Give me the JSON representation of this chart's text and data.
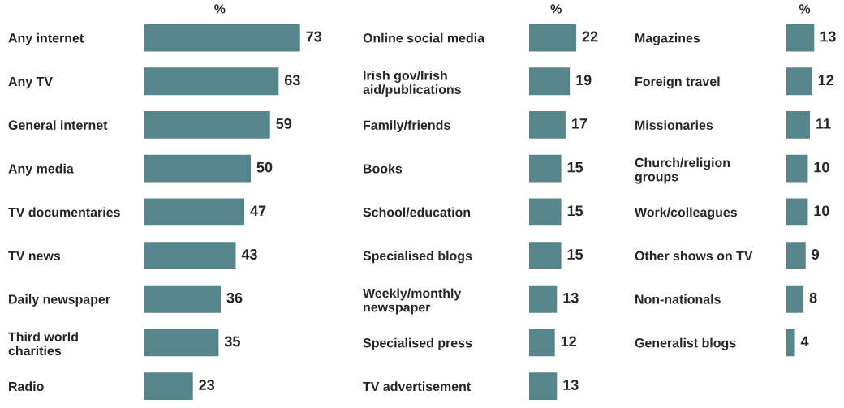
{
  "chart_data": [
    {
      "type": "bar",
      "orientation": "horizontal",
      "title": "%",
      "data_labels": true,
      "color": "#56868c",
      "categories": [
        "Any internet",
        "Any TV",
        "General internet",
        "Any media",
        "TV documentaries",
        "TV news",
        "Daily newspaper",
        "Third world\ncharities",
        "Radio"
      ],
      "values": [
        73,
        63,
        59,
        50,
        47,
        43,
        36,
        35,
        23
      ]
    },
    {
      "type": "bar",
      "orientation": "horizontal",
      "title": "%",
      "data_labels": true,
      "color": "#56868c",
      "categories": [
        "Online social media",
        "Irish gov/Irish\naid/publications",
        "Family/friends",
        "Books",
        "School/education",
        "Specialised blogs",
        "Weekly/monthly\nnewspaper",
        "Specialised press",
        "TV advertisement"
      ],
      "values": [
        22,
        19,
        17,
        15,
        15,
        15,
        13,
        12,
        13
      ]
    },
    {
      "type": "bar",
      "orientation": "horizontal",
      "title": "%",
      "data_labels": true,
      "color": "#56868c",
      "categories": [
        "Magazines",
        "Foreign travel",
        "Missionaries",
        "Church/religion\ngroups",
        "Work/colleagues",
        "Other shows on TV",
        "Non-nationals",
        "Generalist blogs"
      ],
      "values": [
        13,
        12,
        11,
        10,
        10,
        9,
        8,
        4
      ]
    }
  ]
}
